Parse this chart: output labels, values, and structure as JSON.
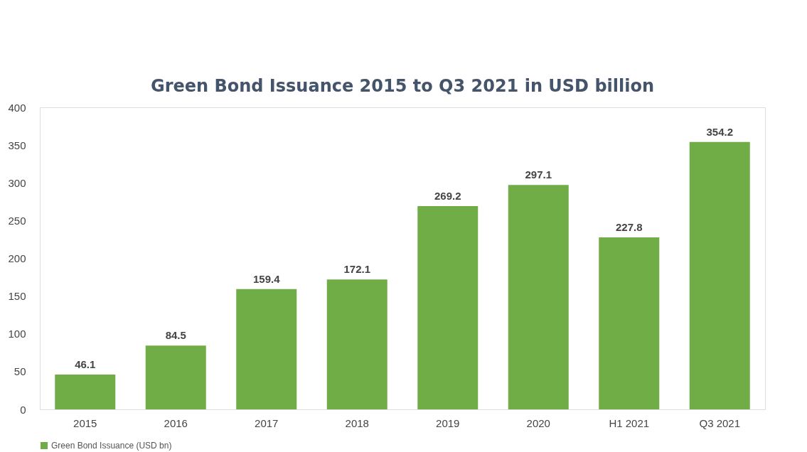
{
  "chart_data": {
    "type": "bar",
    "title": "Green Bond Issuance 2015 to Q3 2021 in USD billion",
    "categories": [
      "2015",
      "2016",
      "2017",
      "2018",
      "2019",
      "2020",
      "H1 2021",
      "Q3 2021"
    ],
    "series": [
      {
        "name": "Green Bond Issuance (USD bn)",
        "color": "#70ad47",
        "values": [
          46.1,
          84.5,
          159.4,
          172.1,
          269.2,
          297.1,
          227.8,
          354.2
        ]
      }
    ],
    "ylim": [
      0,
      400
    ],
    "yticks": [
      0,
      50,
      100,
      150,
      200,
      250,
      300,
      350,
      400
    ],
    "grid": false,
    "legend": "bottom",
    "data_labels": true
  }
}
